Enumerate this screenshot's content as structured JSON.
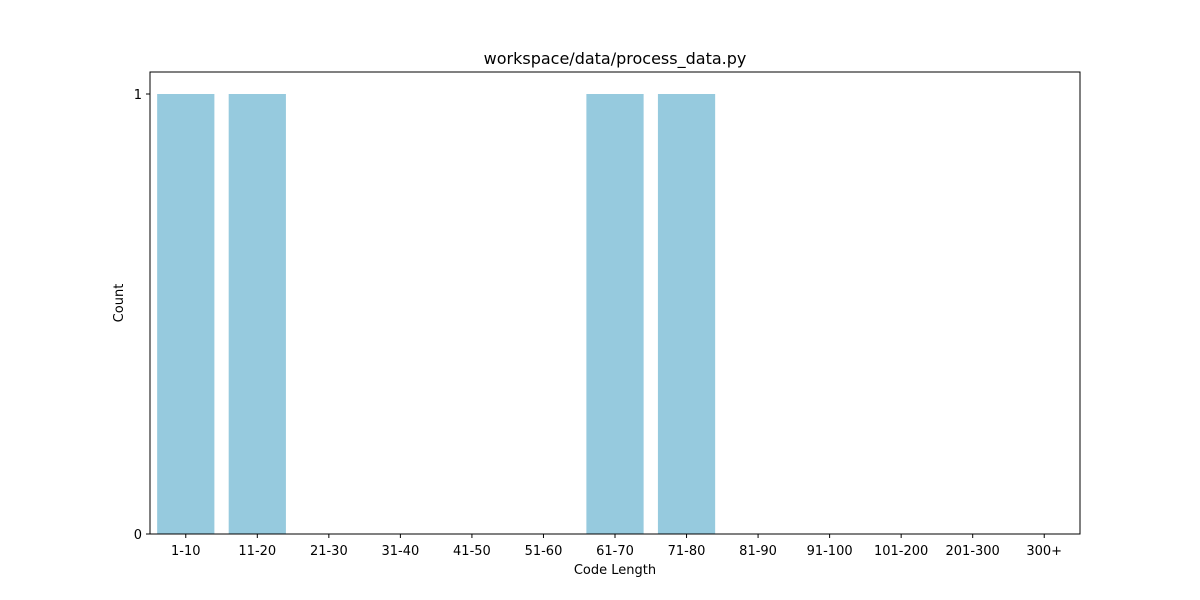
{
  "chart_data": {
    "type": "bar",
    "title": "workspace/data/process_data.py",
    "xlabel": "Code Length",
    "ylabel": "Count",
    "categories": [
      "1-10",
      "11-20",
      "21-30",
      "31-40",
      "41-50",
      "51-60",
      "61-70",
      "71-80",
      "81-90",
      "91-100",
      "101-200",
      "201-300",
      "300+"
    ],
    "values": [
      1,
      1,
      0,
      0,
      0,
      0,
      1,
      1,
      0,
      0,
      0,
      0,
      0
    ],
    "ylim": [
      0,
      1
    ],
    "yticks": [
      0,
      1
    ],
    "grid": false,
    "legend": "none",
    "bar_color": "#96cade"
  }
}
